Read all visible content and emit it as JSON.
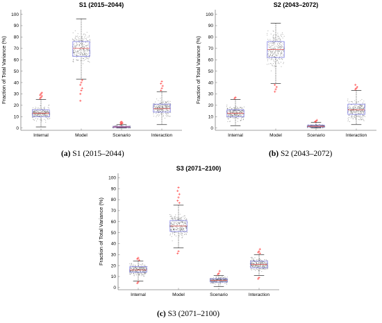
{
  "chart_data": [
    {
      "type": "box",
      "title": "S1 (2015–2044)",
      "caption_letter": "(a)",
      "caption_text": "S1 (2015–2044)",
      "ylabel": "Fraction of Total Variance (%)",
      "ylim": [
        -2,
        104
      ],
      "yticks": [
        0,
        10,
        20,
        30,
        40,
        50,
        60,
        70,
        80,
        90,
        100
      ],
      "categories": [
        "Internal",
        "Model",
        "Scenario",
        "Interaction"
      ],
      "boxes": [
        {
          "q1": 10,
          "median": 13,
          "q3": 16,
          "whisker_low": 1,
          "whisker_high": 25,
          "outliers": [
            26,
            27,
            28,
            29,
            30,
            31
          ]
        },
        {
          "q1": 63,
          "median": 70,
          "q3": 76,
          "whisker_low": 43,
          "whisker_high": 96,
          "outliers": [
            30,
            33,
            35,
            38,
            40,
            42,
            24
          ]
        },
        {
          "q1": 0.5,
          "median": 1,
          "q3": 1.5,
          "whisker_low": 0,
          "whisker_high": 3,
          "outliers": [
            3.5,
            4,
            4.5,
            5,
            5.5
          ]
        },
        {
          "q1": 14,
          "median": 17,
          "q3": 21,
          "whisker_low": 3,
          "whisker_high": 32,
          "outliers": [
            33,
            35,
            37,
            39,
            41
          ]
        }
      ],
      "grid": false
    },
    {
      "type": "box",
      "title": "S2 (2043–2072)",
      "caption_letter": "(b)",
      "caption_text": "S2 (2043–2072)",
      "ylabel": "Fraction of Total Variance (%)",
      "ylim": [
        -2,
        104
      ],
      "yticks": [
        0,
        10,
        20,
        30,
        40,
        50,
        60,
        70,
        80,
        90,
        100
      ],
      "categories": [
        "Internal",
        "Model",
        "Scenario",
        "Interaction"
      ],
      "boxes": [
        {
          "q1": 10,
          "median": 13,
          "q3": 16,
          "whisker_low": 2,
          "whisker_high": 25,
          "outliers": [
            26,
            27
          ]
        },
        {
          "q1": 62,
          "median": 69,
          "q3": 76,
          "whisker_low": 39,
          "whisker_high": 92,
          "outliers": [
            32,
            34,
            36,
            38
          ]
        },
        {
          "q1": 1,
          "median": 1.5,
          "q3": 2.5,
          "whisker_low": 0,
          "whisker_high": 5,
          "outliers": [
            5.5,
            6,
            7
          ]
        },
        {
          "q1": 12,
          "median": 16,
          "q3": 21,
          "whisker_low": 3,
          "whisker_high": 33,
          "outliers": [
            34,
            35,
            36,
            38
          ]
        }
      ],
      "grid": false
    },
    {
      "type": "box",
      "title": "S3 (2071–2100)",
      "caption_letter": "(c)",
      "caption_text": "S3 (2071–2100)",
      "ylabel": "Fraction of Total Variance (%)",
      "ylim": [
        -2,
        104
      ],
      "yticks": [
        0,
        10,
        20,
        30,
        40,
        50,
        60,
        70,
        80,
        90,
        100
      ],
      "categories": [
        "Internal",
        "Model",
        "Scenario",
        "Interaction"
      ],
      "boxes": [
        {
          "q1": 14,
          "median": 16,
          "q3": 19,
          "whisker_low": 6,
          "whisker_high": 24,
          "outliers": [
            4,
            5,
            25,
            26,
            27
          ]
        },
        {
          "q1": 51,
          "median": 56,
          "q3": 61,
          "whisker_low": 36,
          "whisker_high": 75,
          "outliers": [
            31,
            33,
            77,
            79,
            82,
            85,
            88,
            91
          ]
        },
        {
          "q1": 5,
          "median": 6.5,
          "q3": 8,
          "whisker_low": 1,
          "whisker_high": 11,
          "outliers": [
            12,
            13,
            15
          ]
        },
        {
          "q1": 18,
          "median": 21,
          "q3": 24,
          "whisker_low": 11,
          "whisker_high": 30,
          "outliers": [
            8,
            9,
            31,
            32,
            33,
            35
          ]
        }
      ],
      "grid": false
    }
  ],
  "colors": {
    "box": "#8080e6",
    "median": "#e06060",
    "whisker": "#000000",
    "outlier": "#ff3030",
    "points": "#555555",
    "axis": "#808080"
  }
}
